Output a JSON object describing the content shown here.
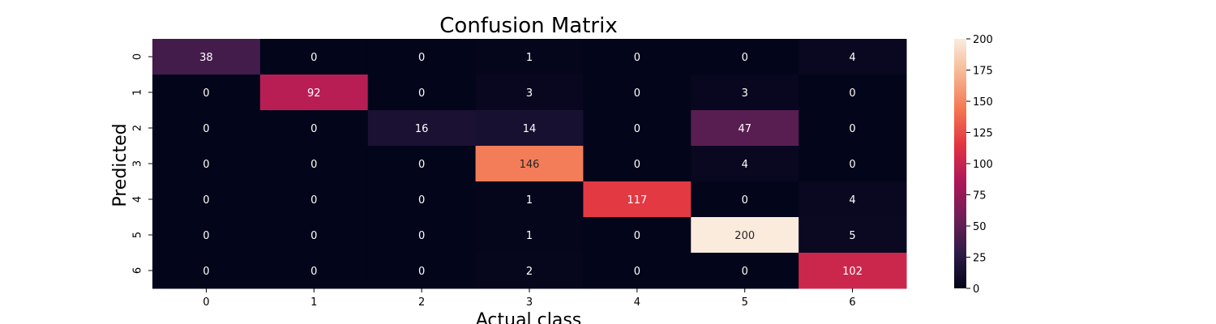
{
  "chart_data": {
    "type": "heatmap",
    "title": "Confusion Matrix",
    "xlabel": "Actual class",
    "ylabel": "Predicted",
    "x_categories": [
      "0",
      "1",
      "2",
      "3",
      "4",
      "5",
      "6"
    ],
    "y_categories": [
      "0",
      "1",
      "2",
      "3",
      "4",
      "5",
      "6"
    ],
    "values": [
      [
        38,
        0,
        0,
        1,
        0,
        0,
        4
      ],
      [
        0,
        92,
        0,
        3,
        0,
        3,
        0
      ],
      [
        0,
        0,
        16,
        14,
        0,
        47,
        0
      ],
      [
        0,
        0,
        0,
        146,
        0,
        4,
        0
      ],
      [
        0,
        0,
        0,
        1,
        117,
        0,
        4
      ],
      [
        0,
        0,
        0,
        1,
        0,
        200,
        5
      ],
      [
        0,
        0,
        0,
        2,
        0,
        0,
        102
      ]
    ],
    "colorbar": {
      "range": [
        0,
        200
      ],
      "ticks": [
        "0",
        "25",
        "50",
        "75",
        "100",
        "125",
        "150",
        "175",
        "200"
      ]
    },
    "colormap": "rocket",
    "colormap_stops": [
      "#03051a",
      "#2e1b47",
      "#701f57",
      "#ad1759",
      "#e13342",
      "#f37651",
      "#f6b48f",
      "#faebdd"
    ],
    "grid": false
  }
}
